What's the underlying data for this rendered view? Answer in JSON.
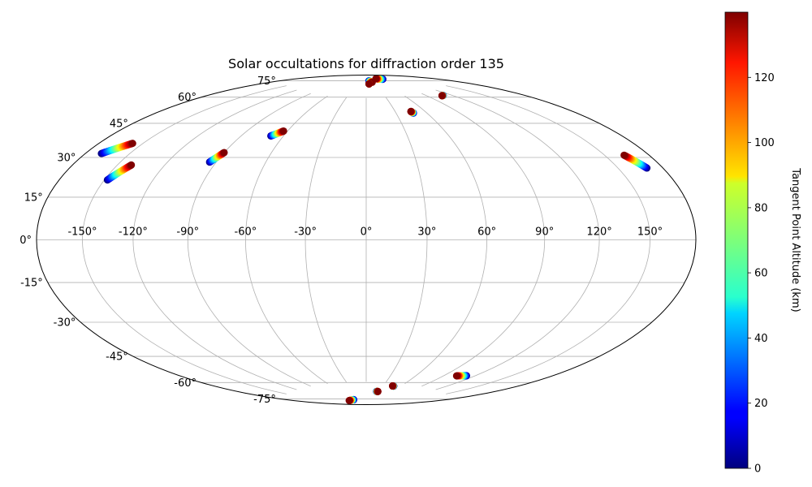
{
  "chart_data": {
    "type": "scatter",
    "projection": "hammer",
    "title": "Solar occultations for diffraction order 135",
    "grid": true,
    "longitude_ticks": [
      {
        "value": -150,
        "label": "-150°"
      },
      {
        "value": -120,
        "label": "-120°"
      },
      {
        "value": -90,
        "label": "-90°"
      },
      {
        "value": -60,
        "label": "-60°"
      },
      {
        "value": -30,
        "label": "-30°"
      },
      {
        "value": 0,
        "label": "0°"
      },
      {
        "value": 30,
        "label": "30°"
      },
      {
        "value": 60,
        "label": "60°"
      },
      {
        "value": 90,
        "label": "90°"
      },
      {
        "value": 120,
        "label": "120°"
      },
      {
        "value": 150,
        "label": "150°"
      }
    ],
    "latitude_ticks": [
      {
        "value": 75,
        "label": "75°"
      },
      {
        "value": 60,
        "label": "60°"
      },
      {
        "value": 45,
        "label": "45°"
      },
      {
        "value": 30,
        "label": "30°"
      },
      {
        "value": 15,
        "label": "15°"
      },
      {
        "value": 0,
        "label": "0°"
      },
      {
        "value": -15,
        "label": "-15°"
      },
      {
        "value": -30,
        "label": "-30°"
      },
      {
        "value": -45,
        "label": "-45°"
      },
      {
        "value": -60,
        "label": "-60°"
      },
      {
        "value": -75,
        "label": "-75°"
      }
    ],
    "colorbar": {
      "label": "Tangent Point Altitude (km)",
      "colormap": "jet",
      "range": [
        0,
        140
      ],
      "ticks": [
        {
          "value": 0,
          "label": "0"
        },
        {
          "value": 20,
          "label": "20"
        },
        {
          "value": 40,
          "label": "40"
        },
        {
          "value": 60,
          "label": "60"
        },
        {
          "value": 80,
          "label": "80"
        },
        {
          "value": 100,
          "label": "100"
        },
        {
          "value": 120,
          "label": "120"
        }
      ]
    },
    "tracks": [
      {
        "start_lon": -169,
        "start_lat": 33,
        "end_lon": -157,
        "end_lat": 39
      },
      {
        "start_lon": -148,
        "start_lat": 24,
        "end_lon": -141,
        "end_lat": 31
      },
      {
        "start_lon": -94,
        "start_lat": 36,
        "end_lon": -90,
        "end_lat": 41
      },
      {
        "start_lon": -69,
        "start_lat": 51,
        "end_lon": -63,
        "end_lat": 54
      },
      {
        "start_lon": 14,
        "start_lat": 86,
        "end_lon": 25,
        "end_lat": 85
      },
      {
        "start_lon": 10,
        "start_lat": 84,
        "end_lon": 10,
        "end_lat": 84
      },
      {
        "start_lon": 95,
        "start_lat": 86,
        "end_lon": 70,
        "end_lat": 87
      },
      {
        "start_lon": 47,
        "start_lat": 65,
        "end_lon": 46,
        "end_lat": 66
      },
      {
        "start_lon": 110,
        "start_lat": 72,
        "end_lon": 108,
        "end_lat": 72
      },
      {
        "start_lon": 169,
        "start_lat": 27,
        "end_lon": 163,
        "end_lat": 33
      },
      {
        "start_lon": -68,
        "start_lat": -86,
        "end_lon": -98,
        "end_lat": -86
      },
      {
        "start_lon": 25,
        "start_lat": -81,
        "end_lon": 28,
        "end_lat": -81
      },
      {
        "start_lon": 48,
        "start_lat": -77,
        "end_lon": 46,
        "end_lat": -77
      },
      {
        "start_lon": 112,
        "start_lat": -66,
        "end_lon": 103,
        "end_lat": -67
      }
    ]
  }
}
